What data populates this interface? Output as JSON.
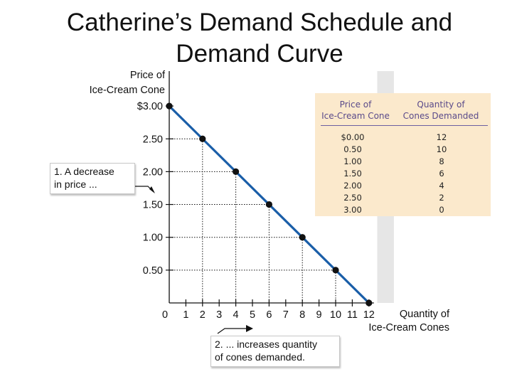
{
  "title_lines": [
    "Catherine’s Demand Schedule and",
    "Demand Curve"
  ],
  "colors": {
    "curve": "#1a5ea8",
    "shade": "#e6e6e6",
    "table_bg": "#fbe9cc",
    "table_header": "#5a4a8a"
  },
  "chart_data": {
    "type": "line",
    "ylabel_lines": [
      "Price of",
      "Ice-Cream Cone"
    ],
    "xlabel_lines": [
      "Quantity of",
      "Ice-Cream Cones"
    ],
    "ylim": [
      0,
      3.0
    ],
    "xlim": [
      0,
      12
    ],
    "y_tick_labels": [
      "$3.00",
      "2.50",
      "2.00",
      "1.50",
      "1.00",
      "0.50"
    ],
    "y_tick_values": [
      3.0,
      2.5,
      2.0,
      1.5,
      1.0,
      0.5
    ],
    "x_tick_labels": [
      "0",
      "1",
      "2",
      "3",
      "4",
      "5",
      "6",
      "7",
      "8",
      "9",
      "10",
      "11",
      "12"
    ],
    "grid": "dotted drop lines to points",
    "points": [
      {
        "x": 0,
        "y": 3.0
      },
      {
        "x": 2,
        "y": 2.5
      },
      {
        "x": 4,
        "y": 2.0
      },
      {
        "x": 6,
        "y": 1.5
      },
      {
        "x": 8,
        "y": 1.0
      },
      {
        "x": 10,
        "y": 0.5
      },
      {
        "x": 12,
        "y": 0.0
      }
    ],
    "shaded_region": {
      "x_from": 12.5,
      "x_to": 13.5
    }
  },
  "schedule_table": {
    "headers": [
      [
        "Price of",
        "Ice-Cream Cone"
      ],
      [
        "Quantity of",
        "Cones Demanded"
      ]
    ],
    "price_col": [
      "$0.00",
      "0.50",
      "1.00",
      "1.50",
      "2.00",
      "2.50",
      "3.00"
    ],
    "quantity_col": [
      "12",
      "10",
      "8",
      "6",
      "4",
      "2",
      "0"
    ]
  },
  "callouts": {
    "price_decrease": [
      "1. A decrease",
      "in price ..."
    ],
    "quantity_increase": [
      "2. ... increases quantity",
      "of cones demanded."
    ]
  }
}
